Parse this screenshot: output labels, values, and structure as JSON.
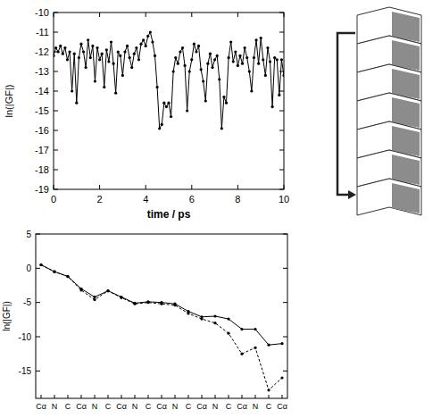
{
  "chart_data": [
    {
      "type": "line",
      "x_label": "time / ps",
      "y_label": "ln(|GF|)",
      "xlim": [
        0,
        10
      ],
      "xticks": [
        0,
        2,
        4,
        6,
        8,
        10
      ],
      "ylim": [
        -19,
        -10
      ],
      "yticks": [
        -10,
        -11,
        -12,
        -13,
        -14,
        -15,
        -16,
        -17,
        -18,
        -19
      ],
      "grid": false,
      "x": [
        0.0,
        0.1,
        0.2,
        0.3,
        0.4,
        0.5,
        0.6,
        0.7,
        0.8,
        0.9,
        1.0,
        1.1,
        1.2,
        1.3,
        1.4,
        1.5,
        1.6,
        1.7,
        1.8,
        1.9,
        2.0,
        2.1,
        2.2,
        2.3,
        2.4,
        2.5,
        2.6,
        2.7,
        2.8,
        2.9,
        3.0,
        3.1,
        3.2,
        3.3,
        3.4,
        3.5,
        3.6,
        3.7,
        3.8,
        3.9,
        4.0,
        4.1,
        4.2,
        4.3,
        4.4,
        4.5,
        4.6,
        4.7,
        4.8,
        4.9,
        5.0,
        5.1,
        5.2,
        5.3,
        5.4,
        5.5,
        5.6,
        5.7,
        5.8,
        5.9,
        6.0,
        6.1,
        6.2,
        6.3,
        6.4,
        6.5,
        6.6,
        6.7,
        6.8,
        6.9,
        7.0,
        7.1,
        7.2,
        7.3,
        7.4,
        7.5,
        7.6,
        7.7,
        7.8,
        7.9,
        8.0,
        8.1,
        8.2,
        8.3,
        8.4,
        8.5,
        8.6,
        8.7,
        8.8,
        8.9,
        9.0,
        9.1,
        9.2,
        9.3,
        9.4,
        9.5,
        9.6,
        9.7,
        9.8,
        9.9,
        10.0
      ],
      "series": [
        {
          "color": "#000000",
          "marker": "circle",
          "line_style": "solid",
          "values": [
            -12.2,
            -11.8,
            -12.0,
            -11.7,
            -12.1,
            -11.8,
            -12.4,
            -12.0,
            -14.0,
            -12.1,
            -14.6,
            -12.3,
            -11.6,
            -12.0,
            -12.8,
            -11.4,
            -12.3,
            -11.7,
            -13.5,
            -11.8,
            -12.4,
            -12.1,
            -13.8,
            -11.9,
            -12.5,
            -11.5,
            -12.6,
            -14.1,
            -12.0,
            -12.2,
            -13.2,
            -12.0,
            -11.7,
            -12.3,
            -12.8,
            -12.1,
            -11.8,
            -12.4,
            -11.6,
            -11.4,
            -11.7,
            -11.2,
            -11.0,
            -11.5,
            -12.2,
            -13.8,
            -15.9,
            -15.7,
            -14.6,
            -14.8,
            -14.6,
            -15.3,
            -13.0,
            -12.3,
            -12.6,
            -12.0,
            -11.8,
            -12.7,
            -15.0,
            -13.0,
            -12.4,
            -11.6,
            -12.0,
            -11.7,
            -12.9,
            -13.5,
            -14.5,
            -12.6,
            -12.1,
            -12.8,
            -12.4,
            -12.2,
            -13.4,
            -15.9,
            -14.3,
            -14.6,
            -12.3,
            -11.5,
            -12.5,
            -12.0,
            -12.7,
            -12.2,
            -12.6,
            -11.8,
            -12.3,
            -13.0,
            -14.0,
            -12.3,
            -11.4,
            -12.6,
            -11.3,
            -12.4,
            -13.2,
            -11.8,
            -12.5,
            -14.8,
            -12.3,
            -12.4,
            -14.2,
            -12.4,
            -13.2
          ]
        }
      ]
    },
    {
      "type": "line",
      "y_label": "ln(|GF|)",
      "ylim": [
        -19,
        5
      ],
      "yticks": [
        5,
        0,
        -5,
        -10,
        -15
      ],
      "grid": false,
      "categories": [
        "Cα",
        "N",
        "C",
        "Cα",
        "N",
        "C",
        "Cα",
        "N",
        "C",
        "Cα",
        "N",
        "C",
        "Cα",
        "N",
        "C",
        "Cα",
        "N",
        "C",
        "Cα"
      ],
      "series": [
        {
          "color": "#000000",
          "marker": "circle",
          "line_style": "solid",
          "values": [
            0.5,
            -0.5,
            -1.2,
            -3.0,
            -4.2,
            -3.3,
            -4.2,
            -5.1,
            -4.9,
            -5.0,
            -5.2,
            -6.3,
            -7.1,
            -7.0,
            -7.4,
            -8.9,
            -8.9,
            -11.2,
            -11.0
          ]
        },
        {
          "color": "#000000",
          "marker": "circle",
          "line_style": "dashed",
          "values": [
            0.5,
            -0.5,
            -1.2,
            -3.2,
            -4.6,
            -3.3,
            -4.3,
            -5.2,
            -5.0,
            -5.2,
            -5.4,
            -6.6,
            -7.4,
            -8.0,
            -9.5,
            -12.5,
            -11.6,
            -17.8,
            -16.0
          ]
        }
      ]
    }
  ]
}
